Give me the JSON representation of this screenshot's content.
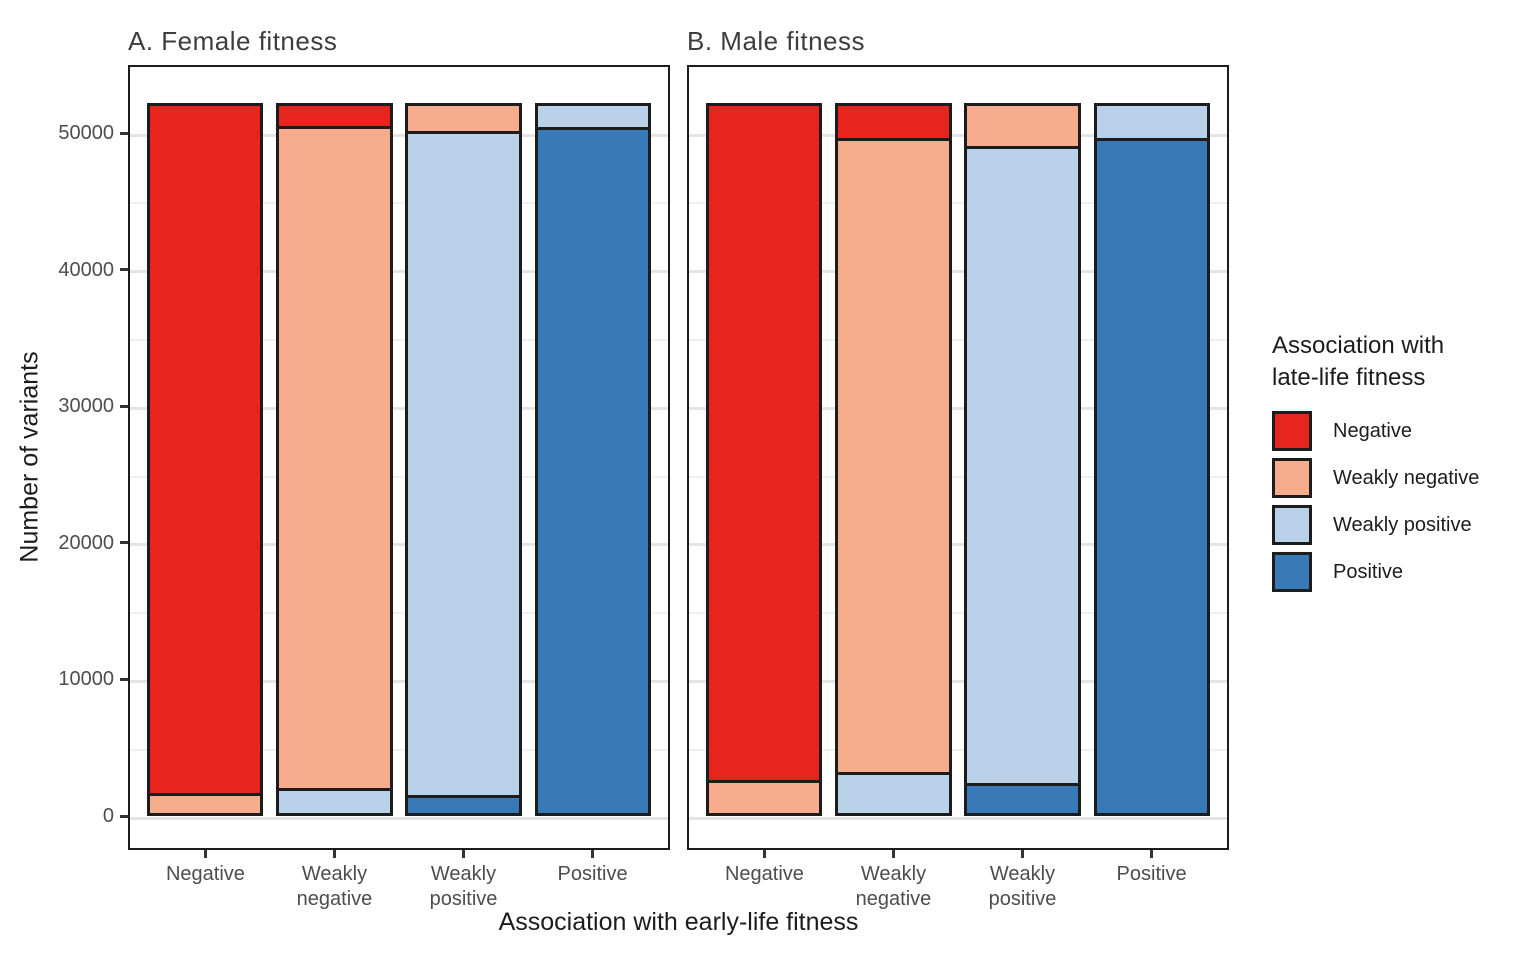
{
  "chart_data": {
    "type": "bar",
    "stacked": true,
    "xlabel": "Association with early-life fitness",
    "ylabel": "Number of variants",
    "categories": [
      "Negative",
      "Weakly negative",
      "Weakly positive",
      "Positive"
    ],
    "category_tick_labels": [
      "Negative",
      "Weakly\nnegative",
      "Weakly\npositive",
      "Positive"
    ],
    "y_ticks": [
      0,
      10000,
      20000,
      30000,
      40000,
      50000
    ],
    "y_minor_ticks_step": 5000,
    "ylim": [
      0,
      55000
    ],
    "grid": "horizontal major+minor",
    "legend_position": "right",
    "bar_total_each": 52200,
    "stack_order_bottom_to_top": [
      "Positive",
      "Weakly positive",
      "Weakly negative",
      "Negative"
    ],
    "panels": [
      {
        "label": "A. Female fitness",
        "series": [
          {
            "name": "Negative",
            "color": "#E8241F",
            "values": [
              50550,
              1700,
              0,
              0
            ]
          },
          {
            "name": "Weakly negative",
            "color": "#F8AC8E",
            "values": [
              1650,
              48450,
              2050,
              0
            ]
          },
          {
            "name": "Weakly positive",
            "color": "#BAD1EA",
            "values": [
              0,
              2050,
              48600,
              1750
            ]
          },
          {
            "name": "Positive",
            "color": "#3879B7",
            "values": [
              0,
              0,
              1550,
              50450
            ]
          }
        ]
      },
      {
        "label": "B. Male fitness",
        "series": [
          {
            "name": "Negative",
            "color": "#E8241F",
            "values": [
              49600,
              2550,
              0,
              0
            ]
          },
          {
            "name": "Weakly negative",
            "color": "#F8AC8E",
            "values": [
              2600,
              46450,
              3150,
              0
            ]
          },
          {
            "name": "Weakly positive",
            "color": "#BAD1EA",
            "values": [
              0,
              3200,
              46600,
              2550
            ]
          },
          {
            "name": "Positive",
            "color": "#3879B7",
            "values": [
              0,
              0,
              2450,
              49650
            ]
          }
        ]
      }
    ]
  },
  "legend": {
    "title": "Association with\nlate-life fitness",
    "items": [
      "Negative",
      "Weakly negative",
      "Weakly positive",
      "Positive"
    ]
  },
  "style": {
    "bar_border": "#1C1C1C",
    "panel_border": "#1C1C1C",
    "grid_major": "#E4E4E4",
    "grid_minor": "#F0F0F0",
    "tick_color": "#333333",
    "tick_label_color": "#4D4D4D",
    "panel_title_color": "#3D3D3D",
    "text_color": "#1C1C1C"
  }
}
